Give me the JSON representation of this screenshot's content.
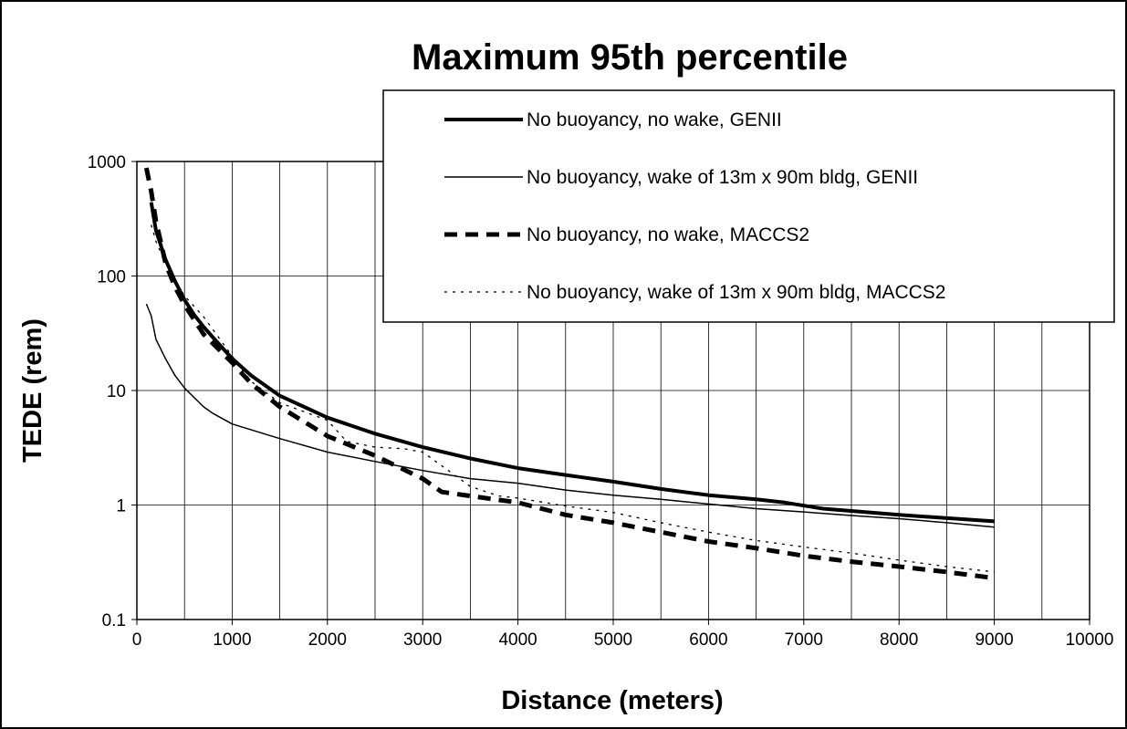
{
  "chart_data": {
    "type": "line",
    "title": "Maximum 95th percentile",
    "xlabel": "Distance (meters)",
    "ylabel": "TEDE (rem)",
    "xlim": [
      0,
      10000
    ],
    "ylim": [
      0.1,
      1000
    ],
    "yscale": "log",
    "grid": true,
    "legend_position": "top-right",
    "x_ticks": [
      "0",
      "1000",
      "2000",
      "3000",
      "4000",
      "5000",
      "6000",
      "7000",
      "8000",
      "9000",
      "10000"
    ],
    "y_ticks": [
      "0.1",
      "1",
      "10",
      "100",
      "1000"
    ],
    "series": [
      {
        "name": "No buoyancy, no wake, GENII",
        "style": "thick-solid",
        "color": "#000000",
        "x": [
          150,
          200,
          300,
          400,
          500,
          600,
          700,
          800,
          1000,
          1200,
          1500,
          2000,
          2500,
          3000,
          3500,
          4000,
          4500,
          5000,
          5500,
          6000,
          6500,
          6800,
          7200,
          8000,
          9000
        ],
        "y": [
          440,
          250,
          140,
          90,
          62,
          46,
          36,
          29,
          19,
          13.5,
          9,
          5.8,
          4.2,
          3.2,
          2.55,
          2.1,
          1.83,
          1.6,
          1.38,
          1.22,
          1.12,
          1.05,
          0.93,
          0.82,
          0.72
        ]
      },
      {
        "name": "No buoyancy, wake of 13m x 90m bldg, GENII",
        "style": "thin-solid",
        "color": "#000000",
        "x": [
          100,
          150,
          200,
          300,
          400,
          500,
          700,
          800,
          1000,
          1500,
          2000,
          2500,
          3000,
          3500,
          4000,
          4500,
          5000,
          5500,
          6000,
          6500,
          7000,
          7500,
          8000,
          8500,
          9000
        ],
        "y": [
          57,
          45,
          28,
          19,
          13.5,
          10.5,
          7.2,
          6.3,
          5.1,
          3.8,
          2.9,
          2.4,
          2.0,
          1.7,
          1.55,
          1.35,
          1.22,
          1.12,
          1.02,
          0.93,
          0.87,
          0.81,
          0.76,
          0.7,
          0.64
        ]
      },
      {
        "name": "No buoyancy, no wake, MACCS2",
        "style": "thick-dashed",
        "color": "#000000",
        "x": [
          100,
          150,
          200,
          250,
          300,
          400,
          500,
          700,
          1000,
          1200,
          1500,
          2000,
          2500,
          3000,
          3200,
          3500,
          4000,
          4500,
          5000,
          5500,
          6000,
          6500,
          7000,
          7500,
          8000,
          8500,
          9000
        ],
        "y": [
          880,
          550,
          300,
          200,
          130,
          80,
          56,
          31,
          17.5,
          11.5,
          7.2,
          4,
          2.7,
          1.7,
          1.3,
          1.2,
          1.05,
          0.82,
          0.7,
          0.58,
          0.48,
          0.42,
          0.36,
          0.32,
          0.29,
          0.26,
          0.23
        ]
      },
      {
        "name": "No buoyancy, wake of 13m x 90m bldg, MACCS2",
        "style": "thin-dotted",
        "color": "#000000",
        "x": [
          150,
          200,
          300,
          400,
          500,
          700,
          1000,
          1200,
          1500,
          2000,
          2200,
          2500,
          2800,
          3000,
          3200,
          3500,
          3800,
          4000,
          4500,
          5000,
          5500,
          6000,
          6500,
          7000,
          7500,
          8000,
          8500,
          9000
        ],
        "y": [
          280,
          200,
          130,
          92,
          67,
          44,
          20,
          12,
          7.8,
          5.5,
          3.6,
          3.2,
          3.1,
          2.9,
          2.2,
          1.45,
          1.2,
          1.15,
          0.98,
          0.86,
          0.7,
          0.58,
          0.49,
          0.43,
          0.38,
          0.33,
          0.29,
          0.26
        ]
      }
    ]
  }
}
